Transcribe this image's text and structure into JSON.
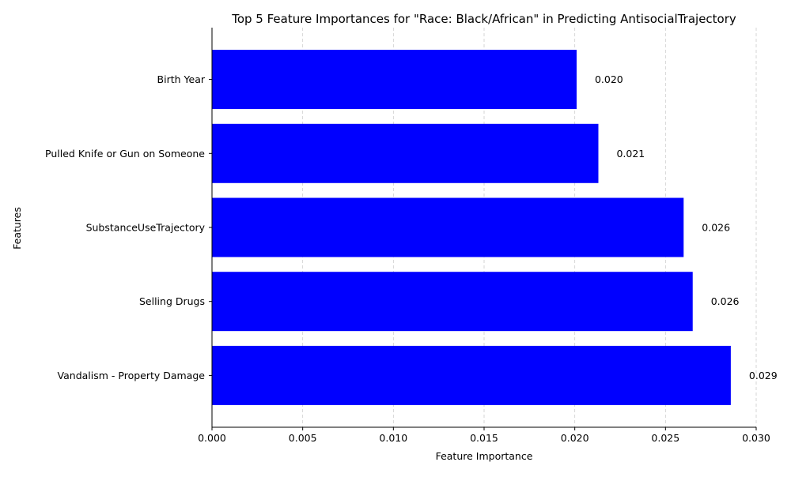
{
  "chart_data": {
    "type": "bar",
    "orientation": "horizontal",
    "title": "Top 5 Feature Importances for \"Race: Black/African\" in Predicting AntisocialTrajectory",
    "xlabel": "Feature Importance",
    "ylabel": "Features",
    "categories": [
      "Vandalism - Property Damage",
      "Selling Drugs",
      "SubstanceUseTrajectory",
      "Pulled Knife or Gun on Someone",
      "Birth Year"
    ],
    "values": [
      0.0286,
      0.0265,
      0.026,
      0.0213,
      0.0201
    ],
    "data_labels": [
      "0.029",
      "0.026",
      "0.026",
      "0.021",
      "0.020"
    ],
    "xlim": [
      0,
      0.03
    ],
    "xticks": [
      0.0,
      0.005,
      0.01,
      0.015,
      0.02,
      0.025,
      0.03
    ],
    "xtick_labels": [
      "0.000",
      "0.005",
      "0.010",
      "0.015",
      "0.020",
      "0.025",
      "0.030"
    ],
    "grid": "x-axis dashed",
    "bar_color": "#0000ff",
    "grid_color": "#cccccc",
    "legend": "none"
  }
}
